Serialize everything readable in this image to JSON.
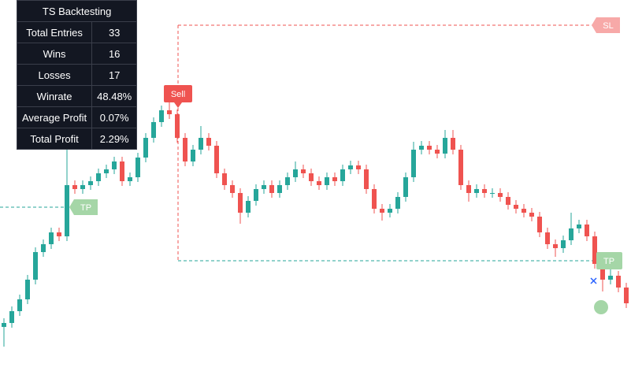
{
  "chart_data": {
    "type": "candlestick",
    "ylim": [
      0,
      49
    ],
    "up_color": "#26a69a",
    "down_color": "#ef5350",
    "open": [
      7.5,
      8,
      9.5,
      11,
      13.5,
      17,
      18,
      19.5,
      19,
      25.5,
      25,
      25.5,
      26,
      27,
      27.5,
      28.5,
      26,
      26.5,
      29,
      31.5,
      33.5,
      35,
      34.5,
      31.5,
      28.5,
      30,
      31.5,
      30.5,
      27,
      25.5,
      24.5,
      22,
      23.5,
      25,
      25.5,
      24.5,
      25.5,
      26.5,
      27.5,
      27,
      26,
      25.5,
      26.5,
      26,
      27.5,
      28,
      27.5,
      25,
      22.5,
      22,
      22.5,
      24,
      26.5,
      30,
      30.5,
      30,
      29.5,
      31.5,
      30,
      25.5,
      24.5,
      25,
      24.5,
      24.5,
      24,
      23,
      22.5,
      22,
      21.5,
      19.5,
      18,
      17.5,
      18.5,
      20,
      20.5,
      19,
      15.5,
      13.5,
      14,
      12.5
    ],
    "high": [
      8.6,
      10.1,
      11.6,
      14.1,
      17.6,
      18.6,
      20.1,
      20.1,
      31,
      26.1,
      26.1,
      26.6,
      27.6,
      28.1,
      29.1,
      29.1,
      27.1,
      29.6,
      32.1,
      34.1,
      35.6,
      37,
      35.1,
      32.1,
      30.6,
      33,
      32.1,
      31.1,
      27.6,
      26.1,
      25.1,
      24.1,
      25.6,
      26.1,
      26.1,
      26.1,
      27.1,
      28.5,
      28.1,
      27.6,
      26.6,
      27.1,
      27.1,
      28.1,
      28.6,
      28.6,
      28.1,
      25.6,
      23.1,
      23.1,
      24.6,
      27.1,
      31,
      31.1,
      31.1,
      30.6,
      32.5,
      32.5,
      30.6,
      26.1,
      25.6,
      25.6,
      25.1,
      25.1,
      24.6,
      23.6,
      23.1,
      22.6,
      22.1,
      20.1,
      18.6,
      19.1,
      22,
      21.1,
      21.1,
      19.6,
      16.1,
      15,
      14.6,
      13.1
    ],
    "low": [
      5,
      7.4,
      8.9,
      10.4,
      12.9,
      16.4,
      17.4,
      18.4,
      18.4,
      24.4,
      24.4,
      24.9,
      25.4,
      26.4,
      26.9,
      25.4,
      25.4,
      25.9,
      28.4,
      30.9,
      32.9,
      33.9,
      30.9,
      27.9,
      27.9,
      29.4,
      29.9,
      26.4,
      24.9,
      23.9,
      20.6,
      21.4,
      22.9,
      24.4,
      23.9,
      23.9,
      24.9,
      25.9,
      26.4,
      25.4,
      24.9,
      24.9,
      25.4,
      25.4,
      26.9,
      26.9,
      24.4,
      21.9,
      21,
      21.4,
      21.9,
      23.4,
      25.9,
      29.4,
      29.4,
      28.9,
      28.9,
      29.4,
      24.9,
      23.4,
      23.9,
      23.9,
      23.9,
      23.4,
      22.4,
      21.9,
      21.4,
      20.9,
      18.9,
      17.4,
      16.4,
      16.9,
      17.9,
      19.4,
      18.4,
      14.9,
      12,
      12.9,
      11.9,
      9.9
    ],
    "close": [
      8,
      9.5,
      11,
      13.5,
      17,
      18,
      19.5,
      19,
      25.5,
      25,
      25.5,
      26,
      27,
      27.5,
      28.5,
      26,
      26.5,
      29,
      31.5,
      33.5,
      35,
      34.5,
      31.5,
      28.5,
      30,
      31.5,
      30.5,
      27,
      25.5,
      24.5,
      22,
      23.5,
      25,
      25.5,
      24.5,
      25.5,
      26.5,
      27.5,
      27,
      26,
      25.5,
      26.5,
      26,
      27.5,
      28,
      27.5,
      25,
      22.5,
      22,
      22.5,
      24,
      26.5,
      30,
      30.5,
      30,
      29.5,
      31.5,
      30,
      25.5,
      24.5,
      25,
      24.5,
      24.5,
      24,
      23,
      22.5,
      22,
      21.5,
      19.5,
      18,
      17.5,
      18.5,
      20,
      20.5,
      19,
      15.5,
      13.5,
      14,
      12.5,
      10.5
    ],
    "stop_loss": 45.8,
    "take_profit": 15.9,
    "previous_take_profit": 22.7,
    "sell_label": "Sell",
    "sl_label": "SL",
    "tp_label": "TP",
    "previous_tp_label": "TP",
    "table": {
      "title": "TS Backtesting",
      "rows": [
        [
          "Total Entries",
          "33"
        ],
        [
          "Wins",
          "16"
        ],
        [
          "Losses",
          "17"
        ],
        [
          "Winrate",
          "48.48%"
        ],
        [
          "Average Profit",
          "0.07%"
        ],
        [
          "Total Profit",
          "2.29%"
        ]
      ]
    }
  }
}
